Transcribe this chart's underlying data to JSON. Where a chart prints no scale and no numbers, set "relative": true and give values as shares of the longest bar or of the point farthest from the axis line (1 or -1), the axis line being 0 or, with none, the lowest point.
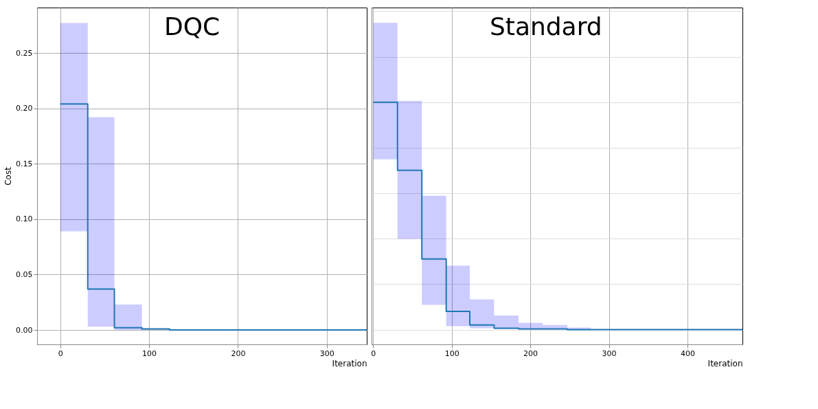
{
  "chart_data": [
    {
      "type": "step",
      "title": "DQC",
      "xlabel": "Iteration",
      "ylabel": "Cost",
      "xlim": [
        -26,
        345
      ],
      "xticks": [
        0,
        100,
        200,
        300
      ],
      "ylim": [
        -0.013,
        0.291
      ],
      "yticks": [
        {
          "value": 0,
          "label": "0.00"
        },
        {
          "value": 0.05,
          "label": "0.05"
        },
        {
          "value": 0.1,
          "label": "0.10"
        },
        {
          "value": 0.15,
          "label": "0.15"
        },
        {
          "value": 0.2,
          "label": "0.20"
        },
        {
          "value": 0.25,
          "label": "0.25"
        }
      ],
      "grid": true,
      "series": [
        {
          "color": "#1f77b4",
          "x": [
            0,
            31,
            61,
            92,
            123,
            345
          ],
          "values": [
            0.204,
            0.037,
            0.002,
            0.001,
            0,
            0
          ],
          "lower": [
            0.089,
            0.003,
            0,
            0,
            0,
            0
          ],
          "upper": [
            0.277,
            0.192,
            0.023,
            0.001,
            0,
            0
          ]
        }
      ]
    },
    {
      "type": "step",
      "title": "Standard",
      "xlabel": "Iteration",
      "relative": true,
      "xlim": [
        -2,
        470
      ],
      "xticks": [
        0,
        100,
        200,
        300,
        400
      ],
      "tick_labels": "x",
      "grid": true,
      "series": [
        {
          "color": "#1f77b4",
          "x": [
            0,
            31,
            62,
            93,
            123,
            154,
            185,
            216,
            247,
            277,
            470
          ],
          "values": [
            1,
            0.701,
            0.311,
            0.08,
            0.021,
            0.006,
            0.003,
            0.003,
            0,
            0,
            0
          ],
          "lower": [
            0.749,
            0.399,
            0.109,
            0.015,
            0.006,
            0.003,
            0,
            0,
            0,
            0,
            0
          ],
          "upper": [
            1.349,
            1.006,
            0.589,
            0.281,
            0.133,
            0.062,
            0.03,
            0.021,
            0.009,
            0,
            0
          ]
        }
      ]
    }
  ]
}
